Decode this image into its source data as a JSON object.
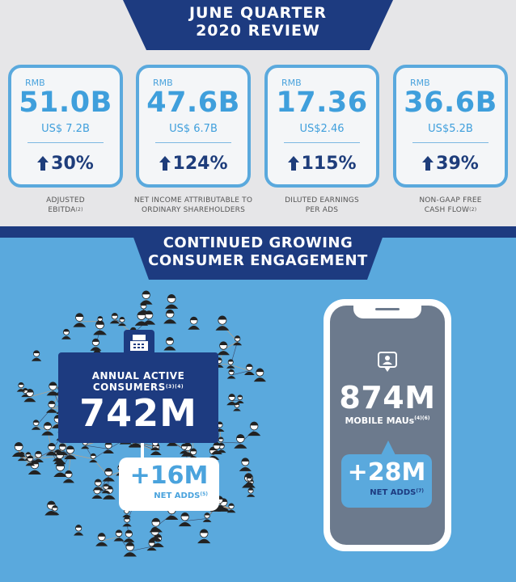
{
  "header": {
    "title_line1": "JUNE QUARTER",
    "title_line2": "2020 REVIEW"
  },
  "metrics": [
    {
      "currency": "RMB",
      "value": "51.0B",
      "usd": "US$ 7.2B",
      "growth": "30%",
      "caption_line1": "ADJUSTED",
      "caption_line2": "EBITDA",
      "caption_sup": "(2)"
    },
    {
      "currency": "RMB",
      "value": "47.6B",
      "usd": "US$ 6.7B",
      "growth": "124%",
      "caption_line1": "NET INCOME ATTRIBUTABLE TO",
      "caption_line2": "ORDINARY SHAREHOLDERS",
      "caption_sup": ""
    },
    {
      "currency": "RMB",
      "value": "17.36",
      "usd": "US$2.46",
      "growth": "115%",
      "caption_line1": "DILUTED EARNINGS",
      "caption_line2": "PER ADS",
      "caption_sup": ""
    },
    {
      "currency": "RMB",
      "value": "36.6B",
      "usd": "US$5.2B",
      "growth": "39%",
      "caption_line1": "NON-GAAP FREE",
      "caption_line2": "CASH FLOW",
      "caption_sup": "(2)"
    }
  ],
  "section": {
    "title_line1": "CONTINUED GROWING",
    "title_line2": "CONSUMER ENGAGEMENT"
  },
  "consumers": {
    "label_line1": "ANNUAL ACTIVE",
    "label_line2": "CONSUMERS",
    "label_sup": "(3)(4)",
    "value": "742M",
    "net_adds_value": "+16M",
    "net_adds_label": "NET ADDS",
    "net_adds_sup": "(5)"
  },
  "mobile": {
    "value": "874M",
    "label": "MOBILE MAUs",
    "label_sup": "(4)(6)",
    "net_adds_value": "+28M",
    "net_adds_label": "NET ADDS",
    "net_adds_sup": "(7)"
  },
  "colors": {
    "navy": "#1d3b80",
    "light_blue": "#5aa9dd",
    "accent_blue": "#3f9fdc",
    "phone_screen": "#6c7a8d"
  },
  "icons": [
    "up-arrow-icon",
    "cash-register-icon",
    "chat-person-icon",
    "smartphone-icon",
    "people-network-illustration"
  ]
}
